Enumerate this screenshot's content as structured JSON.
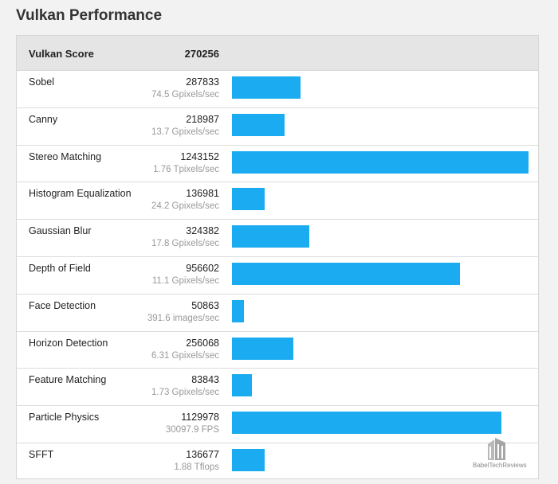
{
  "page": {
    "title": "Vulkan Performance"
  },
  "table": {
    "header": {
      "label": "Vulkan Score",
      "score": "270256"
    },
    "max_value": 1243152,
    "rows": [
      {
        "name": "Sobel",
        "score": "287833",
        "value": 287833,
        "sub": "74.5 Gpixels/sec"
      },
      {
        "name": "Canny",
        "score": "218987",
        "value": 218987,
        "sub": "13.7 Gpixels/sec"
      },
      {
        "name": "Stereo Matching",
        "score": "1243152",
        "value": 1243152,
        "sub": "1.76 Tpixels/sec"
      },
      {
        "name": "Histogram Equalization",
        "score": "136981",
        "value": 136981,
        "sub": "24.2 Gpixels/sec"
      },
      {
        "name": "Gaussian Blur",
        "score": "324382",
        "value": 324382,
        "sub": "17.8 Gpixels/sec"
      },
      {
        "name": "Depth of Field",
        "score": "956602",
        "value": 956602,
        "sub": "11.1 Gpixels/sec"
      },
      {
        "name": "Face Detection",
        "score": "50863",
        "value": 50863,
        "sub": "391.6 images/sec"
      },
      {
        "name": "Horizon Detection",
        "score": "256068",
        "value": 256068,
        "sub": "6.31 Gpixels/sec"
      },
      {
        "name": "Feature Matching",
        "score": "83843",
        "value": 83843,
        "sub": "1.73 Gpixels/sec"
      },
      {
        "name": "Particle Physics",
        "score": "1129978",
        "value": 1129978,
        "sub": "30097.9 FPS"
      },
      {
        "name": "SFFT",
        "score": "136677",
        "value": 136677,
        "sub": "1.88 Tflops"
      }
    ]
  },
  "colors": {
    "bar": "#1aabf0",
    "header_bg": "#e5e5e5",
    "page_bg": "#f2f2f2"
  },
  "watermark": {
    "text": "BabelTechReviews",
    "icon": "building-logo-icon"
  }
}
